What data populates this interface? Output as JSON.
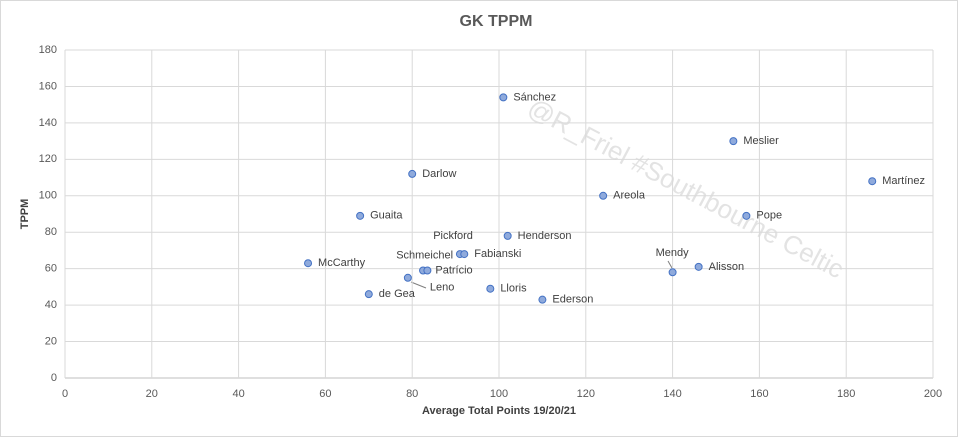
{
  "chart_data": {
    "type": "scatter",
    "title": "GK TPPM",
    "x_label": "Average Total Points 19/20/21",
    "y_label": "TPPM",
    "annotation": "@R_Friel #Southbourne Celtic",
    "color": "#8faadc",
    "edge_color": "#4472c4",
    "grid": true,
    "xlim": [
      0,
      200
    ],
    "xticks": [
      0,
      20,
      40,
      60,
      80,
      100,
      120,
      140,
      160,
      180,
      200
    ],
    "ylim": [
      0,
      180
    ],
    "yticks": [
      0,
      20,
      40,
      60,
      80,
      100,
      120,
      140,
      160,
      180
    ],
    "labels": [
      "Sánchez",
      "Meslier",
      "Martínez",
      "Darlow",
      "Areola",
      "Guaita",
      "Pope",
      "Henderson",
      "Pickford",
      "Fabianski",
      "Mendy",
      "Alisson",
      "McCarthy",
      "Schmeichel",
      "Patrício",
      "Leno",
      "de Gea",
      "Lloris",
      "Ederson"
    ],
    "x": [
      101,
      154,
      186,
      80,
      124,
      68,
      157,
      102,
      91,
      92,
      140,
      146,
      56,
      82.5,
      83.5,
      79,
      70,
      98,
      110
    ],
    "values": [
      154,
      130,
      108,
      112,
      100,
      89,
      89,
      78,
      68,
      68,
      58,
      61,
      63,
      59,
      59,
      55,
      46,
      49,
      43
    ]
  }
}
